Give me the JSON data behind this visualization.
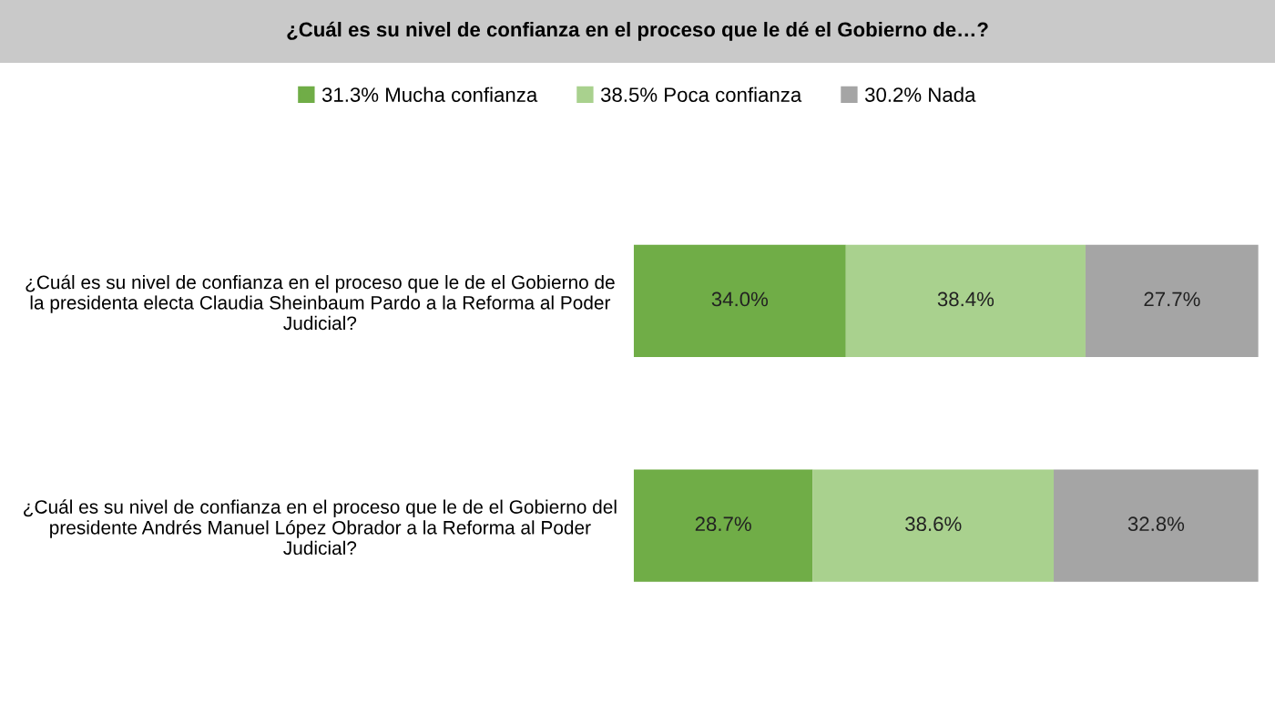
{
  "chart_data": {
    "type": "bar",
    "orientation": "horizontal",
    "stacked": true,
    "title": "¿Cuál es su nivel de confianza en el proceso que le dé el Gobierno de…?",
    "categories": [
      "¿Cuál es su nivel de confianza en el proceso que le de el Gobierno de\nla presidenta electa Claudia Sheinbaum Pardo a la Reforma al Poder\nJudicial?",
      "¿Cuál es su nivel de confianza en el proceso que le de el Gobierno del\npresidente Andrés Manuel López Obrador a la Reforma al Poder\nJudicial?"
    ],
    "series": [
      {
        "name": "31.3% Mucha confianza",
        "color": "#70ad47",
        "values": [
          34.0,
          28.7
        ],
        "value_labels": [
          "34.0%",
          "28.7%"
        ]
      },
      {
        "name": "38.5% Poca confianza",
        "color": "#a9d18e",
        "values": [
          38.4,
          38.6
        ],
        "value_labels": [
          "38.4%",
          "38.6%"
        ]
      },
      {
        "name": "30.2% Nada",
        "color": "#a5a5a5",
        "values": [
          27.7,
          32.8
        ],
        "value_labels": [
          "27.7%",
          "32.8%"
        ]
      }
    ],
    "legend": "top",
    "grid": false
  }
}
